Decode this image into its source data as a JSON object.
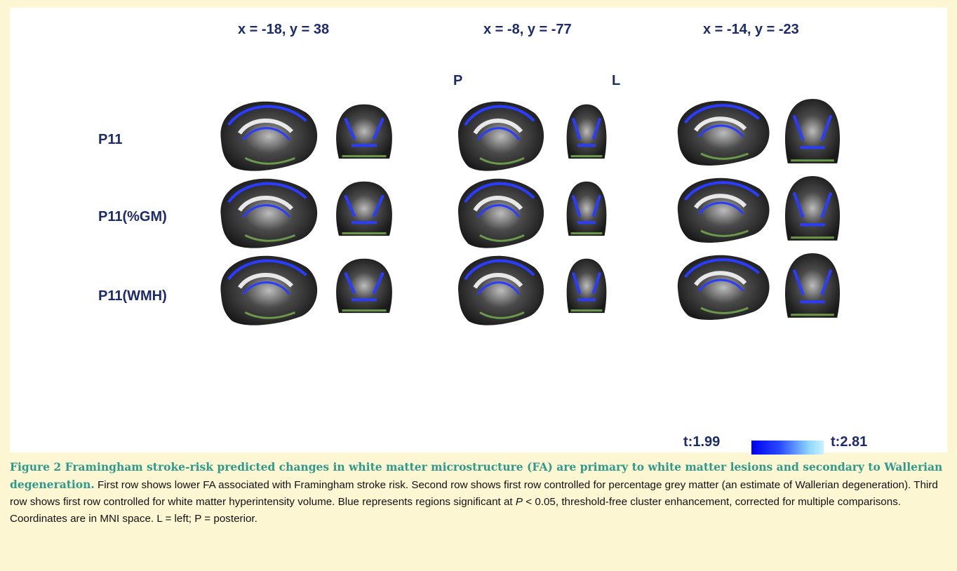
{
  "coordinates": [
    "x = -18, y = 38",
    "x = -8, y = -77",
    "x = -14, y = -23"
  ],
  "orientation": {
    "posterior": "P",
    "left": "L"
  },
  "rows": [
    "P11",
    "P11(%GM)",
    "P11(WMH)"
  ],
  "colorbar": {
    "min_label": "t:1.99",
    "max_label": "t:2.81",
    "low_color": "#0000ee",
    "high_color": "#c8f2ff"
  },
  "caption": {
    "title": "Figure 2 Framingham stroke-risk predicted changes in white matter microstructure (FA) are primary to white matter lesions and secondary to Wallerian degeneration.",
    "text_before_p": " First row shows lower FA associated with Framingham stroke risk. Second row shows first row controlled for percentage grey matter (an estimate of Wallerian degeneration). Third row shows first row controlled for white matter hyperintensity volume. Blue represents regions significant at ",
    "p_symbol": "P",
    "text_after_p": " < 0.05, threshold-free cluster enhancement, corrected for multiple comparisons. Coordinates are in MNI space. L = left; P = posterior."
  },
  "colors": {
    "background": "#fdf6d3",
    "label_navy": "#1c2a6e",
    "caption_title": "#2e9a8c",
    "overlay_blue": "#2a3cff",
    "overlay_green": "#6a9a4a"
  }
}
